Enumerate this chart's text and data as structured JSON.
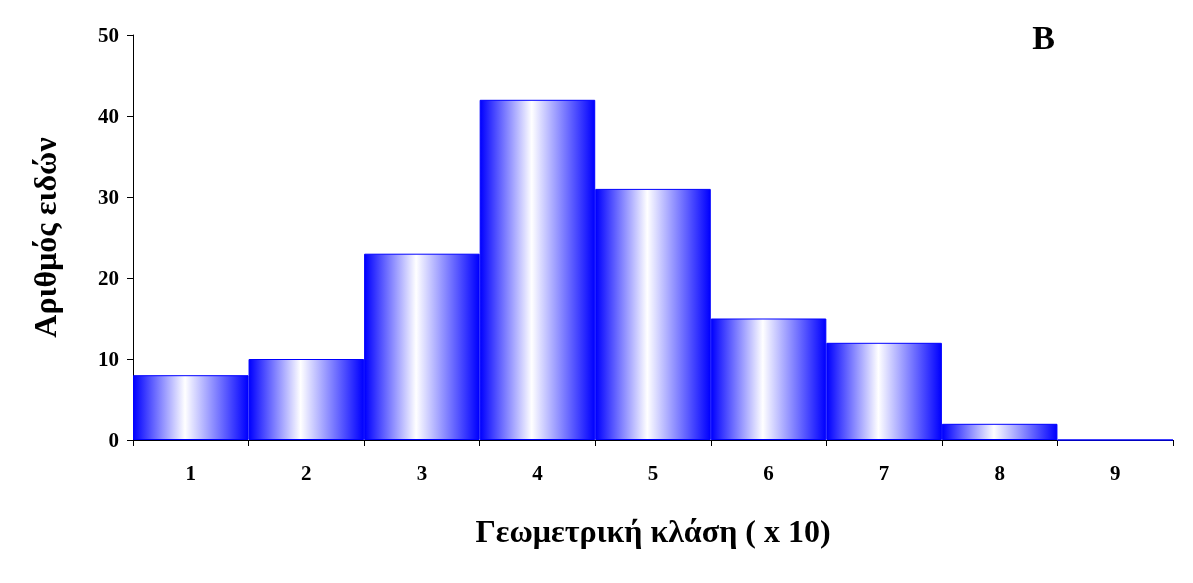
{
  "chart_data": {
    "type": "bar",
    "xlabel": "Γεωμετρική κλάση ( x 10)",
    "ylabel": "Αριθμός ειδών",
    "annotations": [
      "B"
    ],
    "categories": [
      "1",
      "2",
      "3",
      "4",
      "5",
      "6",
      "7",
      "8",
      "9"
    ],
    "values": [
      8,
      10,
      23,
      42,
      31,
      15,
      12,
      2,
      0
    ],
    "color": "#0000ff",
    "ylim": [
      0,
      50
    ],
    "yticks": [
      0,
      10,
      20,
      30,
      40,
      50
    ],
    "grid": false
  }
}
